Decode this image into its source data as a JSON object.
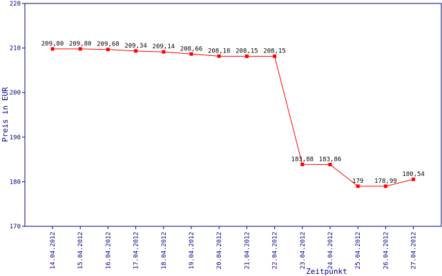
{
  "chart_data": {
    "type": "line",
    "title": "",
    "xlabel": "Zeitpunkt",
    "ylabel": "Preis in EUR",
    "ylim": [
      170,
      220
    ],
    "yticks": [
      "170",
      "180",
      "190",
      "200",
      "210",
      "220"
    ],
    "categories": [
      "14.04.2012",
      "15.04.2012",
      "16.04.2012",
      "17.04.2012",
      "18.04.2012",
      "19.04.2012",
      "20.04.2012",
      "21.04.2012",
      "22.04.2012",
      "23.04.2012",
      "24.04.2012",
      "25.04.2012",
      "26.04.2012",
      "27.04.2012"
    ],
    "values": [
      209.8,
      209.8,
      209.68,
      209.34,
      209.14,
      208.66,
      208.18,
      208.15,
      208.15,
      183.88,
      183.86,
      179,
      178.99,
      180.54
    ],
    "data_labels": [
      "209,80",
      "209,80",
      "209,68",
      "209,34",
      "209,14",
      "208,66",
      "208,18",
      "208,15",
      "208,15",
      "183,88",
      "183,86",
      "179",
      "178,99",
      "180,54"
    ],
    "grid": false,
    "colors": {
      "axis": "#000080",
      "line": "#ff0000",
      "marker": "#ff0000",
      "labels": "#000000"
    }
  }
}
